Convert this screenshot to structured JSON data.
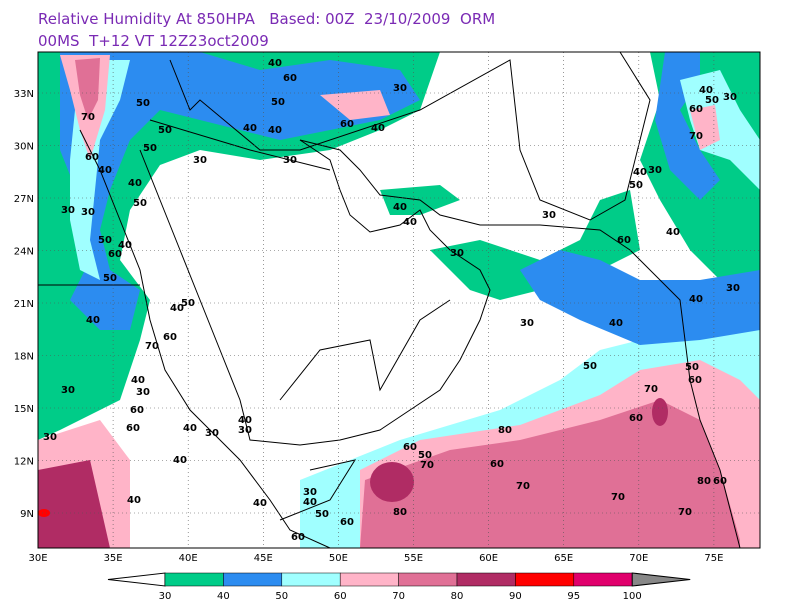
{
  "header": {
    "title_line1": "Relative Humidity At 850HPA   Based: 00Z  23/10/2009  ORM",
    "title_line2": "00MS  T+12 VT 12Z23oct2009"
  },
  "map": {
    "lat_labels": [
      "33N",
      "30N",
      "27N",
      "24N",
      "21N",
      "18N",
      "15N",
      "12N",
      "9N"
    ],
    "lon_labels": [
      "30E",
      "35E",
      "40E",
      "45E",
      "50E",
      "55E",
      "60E",
      "65E",
      "70E",
      "75E"
    ],
    "contour_labels": [
      "30",
      "40",
      "60",
      "50",
      "40",
      "40",
      "60",
      "40",
      "50",
      "50",
      "50",
      "70",
      "60",
      "30",
      "30",
      "40",
      "40",
      "50",
      "30",
      "30",
      "50",
      "40",
      "60",
      "50",
      "40",
      "50",
      "40",
      "60",
      "70",
      "30",
      "30",
      "40",
      "30",
      "60",
      "60",
      "40",
      "30",
      "40",
      "30",
      "40",
      "40",
      "40",
      "30",
      "40",
      "50",
      "60",
      "60",
      "80",
      "70",
      "50",
      "60",
      "80",
      "60",
      "70",
      "70",
      "70",
      "80",
      "60",
      "60",
      "70",
      "60",
      "50",
      "50",
      "40",
      "30",
      "40",
      "30",
      "40",
      "60",
      "30",
      "50",
      "40",
      "30",
      "40",
      "30",
      "70",
      "60",
      "50",
      "40",
      "30",
      "40"
    ]
  },
  "colorbar": {
    "labels": [
      "30",
      "40",
      "50",
      "60",
      "70",
      "80",
      "90",
      "95",
      "100"
    ],
    "colors": [
      "#00cc88",
      "#2c8cf0",
      "#a0ffff",
      "#ffb4c8",
      "#e07096",
      "#b02c64",
      "#ff0000",
      "#e0006c"
    ]
  }
}
